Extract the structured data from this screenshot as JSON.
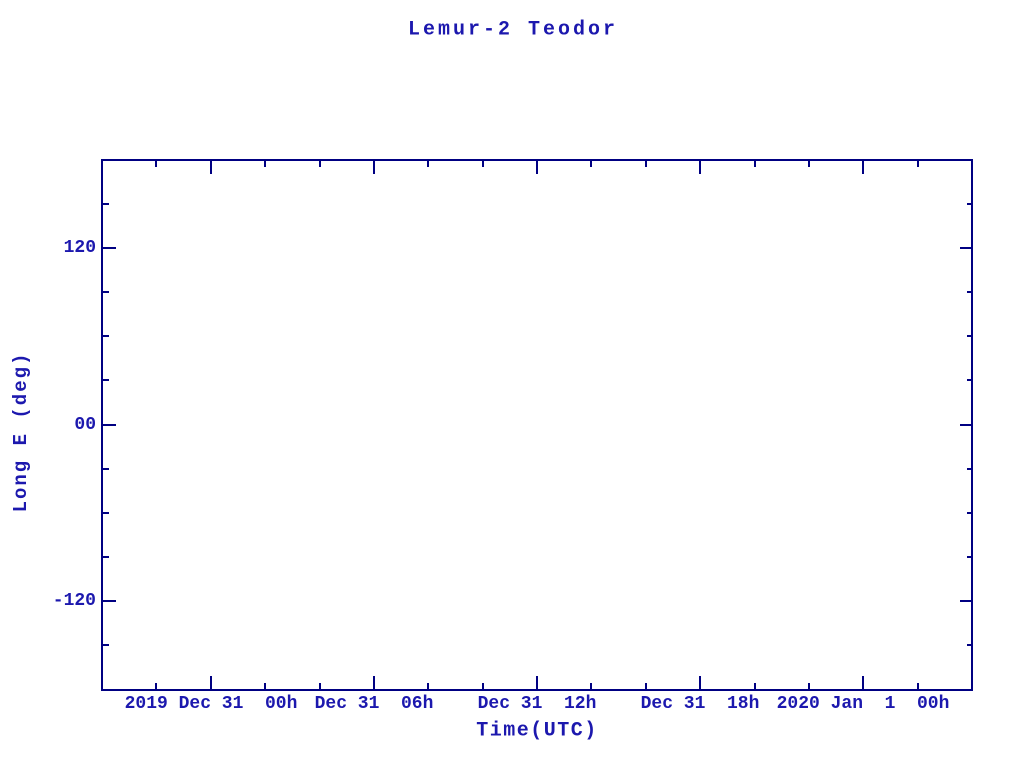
{
  "figure": {
    "background": "#ffffff"
  },
  "chart_data": {
    "type": "scatter",
    "title": "Lemur-2 Teodor",
    "xlabel": "Time(UTC)",
    "ylabel": "Long E (deg)",
    "series": [],
    "grid": false,
    "x_axis": {
      "hours_range": [
        0,
        32
      ],
      "major_ticks": [
        {
          "hour": 4,
          "label": "2019 Dec 31  00h"
        },
        {
          "hour": 10,
          "label": "Dec 31  06h"
        },
        {
          "hour": 16,
          "label": "Dec 31  12h"
        },
        {
          "hour": 22,
          "label": "Dec 31  18h"
        },
        {
          "hour": 28,
          "label": "2020 Jan  1  00h"
        }
      ],
      "minor_tick_hours": [
        2,
        6,
        8,
        12,
        14,
        18,
        20,
        24,
        26,
        30
      ]
    },
    "y_axis": {
      "range": [
        -180,
        180
      ],
      "major_ticks": [
        {
          "value": 120,
          "label": "120"
        },
        {
          "value": 0,
          "label": "00"
        },
        {
          "value": -120,
          "label": "-120"
        }
      ],
      "minor_tick_values": [
        150,
        90,
        60,
        30,
        -30,
        -60,
        -90,
        -150
      ]
    },
    "colors": {
      "text": "#1c18ae",
      "axis": "#000082"
    }
  }
}
